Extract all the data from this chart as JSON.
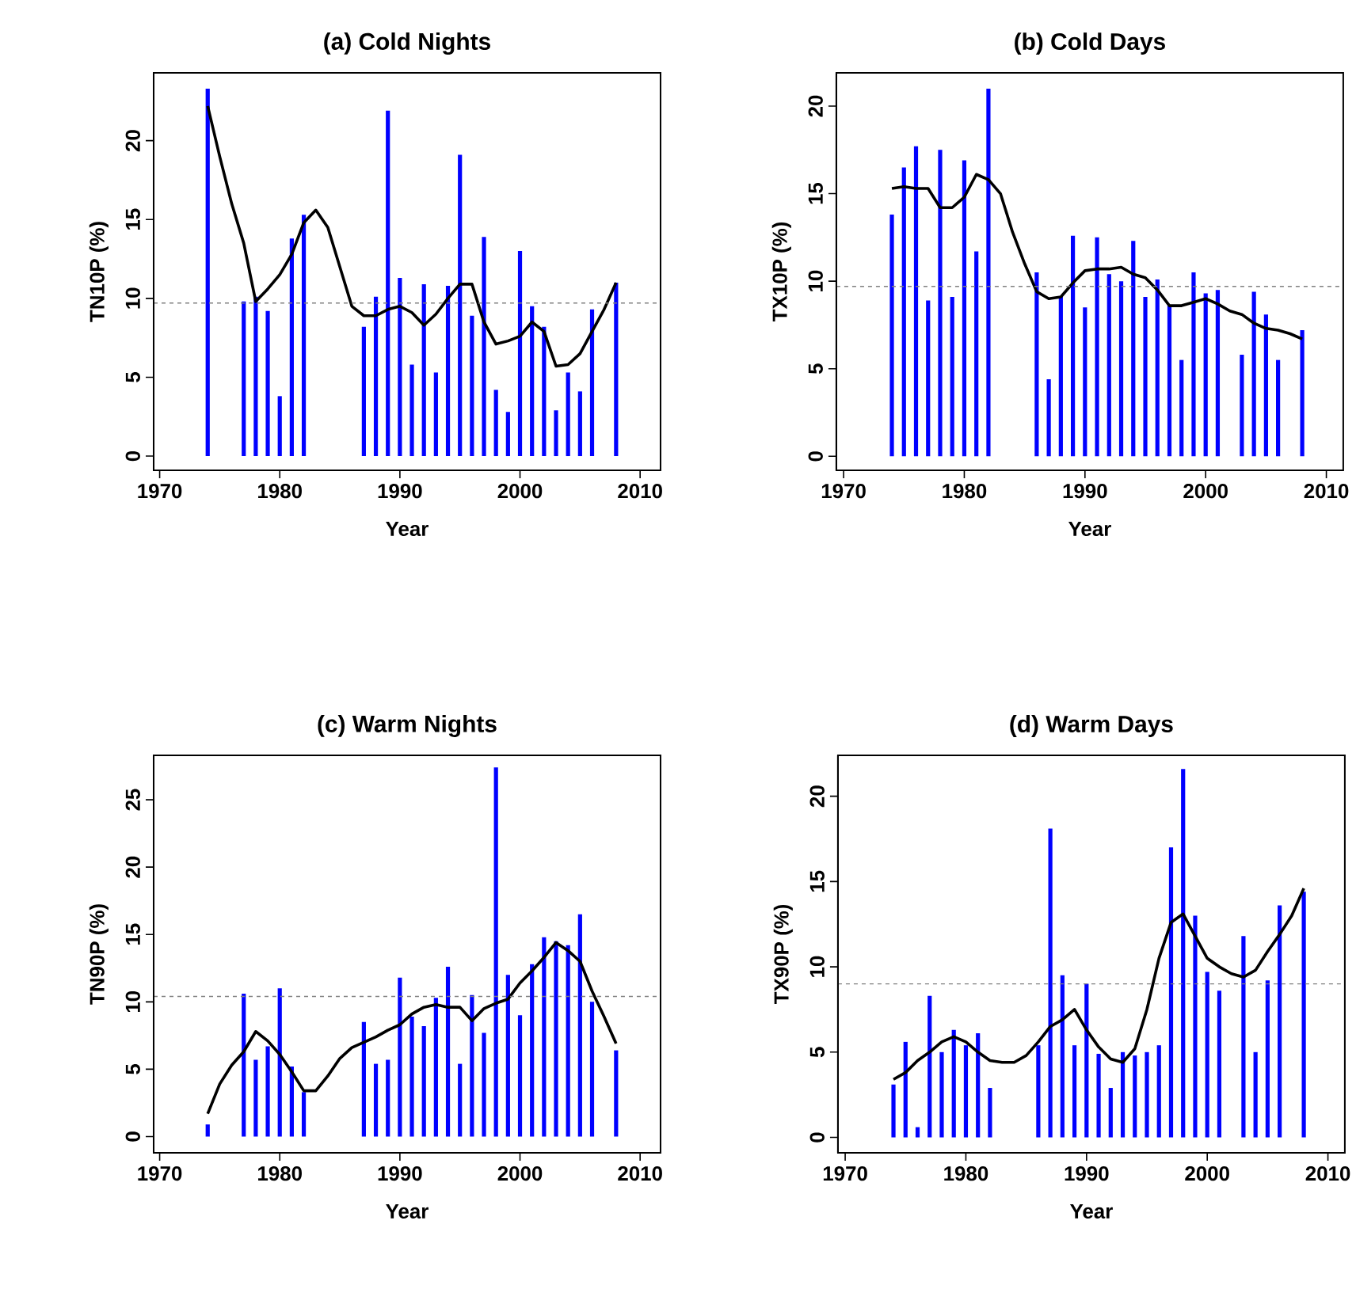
{
  "chart_data": [
    {
      "type": "bar",
      "title": "(a) Cold Nights",
      "xlabel": "Year",
      "ylabel": "TN10P (%)",
      "xlim": [
        1969.5,
        2011.7
      ],
      "ylim": [
        -0.9,
        24.3
      ],
      "xticks": [
        1970,
        1980,
        1990,
        2000,
        2010
      ],
      "yticks": [
        0,
        5,
        10,
        15,
        20
      ],
      "series": [
        {
          "color": "#0000ff",
          "x": [
            1974,
            1977,
            1978,
            1979,
            1980,
            1981,
            1982,
            1987,
            1988,
            1989,
            1990,
            1991,
            1992,
            1993,
            1994,
            1995,
            1996,
            1997,
            1998,
            1999,
            2000,
            2001,
            2002,
            2003,
            2004,
            2005,
            2006,
            2008
          ],
          "values": [
            23.3,
            9.8,
            10.1,
            9.2,
            3.8,
            13.8,
            15.3,
            8.2,
            10.1,
            21.9,
            11.3,
            5.8,
            10.9,
            5.3,
            10.8,
            19.1,
            8.9,
            13.9,
            4.2,
            2.8,
            13.0,
            9.5,
            8.2,
            2.9,
            5.3,
            4.1,
            9.3,
            11.0
          ]
        },
        {
          "type": "line",
          "color": "#000000",
          "x": [
            1974,
            1975,
            1976,
            1977,
            1978,
            1979,
            1980,
            1981,
            1982,
            1983,
            1984,
            1985,
            1986,
            1987,
            1988,
            1989,
            1990,
            1991,
            1992,
            1993,
            1994,
            1995,
            1996,
            1997,
            1998,
            1999,
            2000,
            2001,
            2002,
            2003,
            2004,
            2005,
            2006,
            2007,
            2008
          ],
          "values": [
            22.2,
            19,
            16,
            13.5,
            9.8,
            10.6,
            11.5,
            12.8,
            14.8,
            15.6,
            14.5,
            12,
            9.5,
            8.9,
            8.9,
            9.3,
            9.5,
            9.1,
            8.3,
            9.0,
            10.0,
            10.9,
            10.9,
            8.5,
            7.1,
            7.3,
            7.6,
            8.5,
            7.9,
            5.7,
            5.8,
            6.5,
            7.9,
            9.3,
            11.0
          ]
        }
      ],
      "ref_lines": [
        {
          "axis": "y",
          "value": 9.7,
          "color": "#808080",
          "line_style": "dashed"
        }
      ]
    },
    {
      "type": "bar",
      "title": "(b) Cold Days",
      "xlabel": "Year",
      "ylabel": "TX10P (%)",
      "xlim": [
        1969.4,
        2011.4
      ],
      "ylim": [
        -0.8,
        21.9
      ],
      "xticks": [
        1970,
        1980,
        1990,
        2000,
        2010
      ],
      "yticks": [
        0,
        5,
        10,
        15,
        20
      ],
      "series": [
        {
          "color": "#0000ff",
          "x": [
            1974,
            1975,
            1976,
            1977,
            1978,
            1979,
            1980,
            1981,
            1982,
            1986,
            1987,
            1988,
            1989,
            1990,
            1991,
            1992,
            1993,
            1994,
            1995,
            1996,
            1997,
            1998,
            1999,
            2000,
            2001,
            2003,
            2004,
            2005,
            2006,
            2008
          ],
          "values": [
            13.8,
            16.5,
            17.7,
            8.9,
            17.5,
            9.1,
            16.9,
            11.7,
            21.0,
            10.5,
            4.4,
            9.1,
            12.6,
            8.5,
            12.5,
            10.4,
            10.0,
            12.3,
            9.1,
            10.1,
            8.6,
            5.5,
            10.5,
            9.3,
            9.5,
            5.8,
            9.4,
            8.1,
            5.5,
            7.2
          ]
        },
        {
          "type": "line",
          "color": "#000000",
          "x": [
            1974,
            1975,
            1976,
            1977,
            1978,
            1979,
            1980,
            1981,
            1982,
            1983,
            1984,
            1985,
            1986,
            1987,
            1988,
            1989,
            1990,
            1991,
            1992,
            1993,
            1994,
            1995,
            1996,
            1997,
            1998,
            1999,
            2000,
            2001,
            2002,
            2003,
            2004,
            2005,
            2006,
            2007,
            2008
          ],
          "values": [
            15.3,
            15.4,
            15.3,
            15.3,
            14.2,
            14.2,
            14.8,
            16.1,
            15.8,
            15.0,
            12.8,
            11.0,
            9.4,
            9.0,
            9.1,
            9.9,
            10.6,
            10.7,
            10.7,
            10.8,
            10.4,
            10.2,
            9.5,
            8.6,
            8.6,
            8.8,
            9.0,
            8.7,
            8.3,
            8.1,
            7.6,
            7.3,
            7.2,
            7.0,
            6.7
          ]
        }
      ],
      "ref_lines": [
        {
          "axis": "y",
          "value": 9.7,
          "color": "#808080",
          "line_style": "dashed"
        }
      ]
    },
    {
      "type": "bar",
      "title": "(c) Warm Nights",
      "xlabel": "Year",
      "ylabel": "TN90P (%)",
      "xlim": [
        1969.5,
        2011.7
      ],
      "ylim": [
        -1.2,
        28.3
      ],
      "xticks": [
        1970,
        1980,
        1990,
        2000,
        2010
      ],
      "yticks": [
        0,
        5,
        10,
        15,
        20,
        25
      ],
      "series": [
        {
          "color": "#0000ff",
          "x": [
            1974,
            1977,
            1978,
            1979,
            1980,
            1981,
            1982,
            1987,
            1988,
            1989,
            1990,
            1991,
            1992,
            1993,
            1994,
            1995,
            1996,
            1997,
            1998,
            1999,
            2000,
            2001,
            2002,
            2003,
            2004,
            2005,
            2006,
            2008
          ],
          "values": [
            0.9,
            10.6,
            5.7,
            6.7,
            11.0,
            5.2,
            3.3,
            8.5,
            5.4,
            5.7,
            11.8,
            8.9,
            8.2,
            10.3,
            12.6,
            5.4,
            10.5,
            7.7,
            27.4,
            12.0,
            9.0,
            12.8,
            14.8,
            14.5,
            14.2,
            16.5,
            10.0,
            6.4
          ]
        },
        {
          "type": "line",
          "color": "#000000",
          "x": [
            1974,
            1975,
            1976,
            1977,
            1978,
            1979,
            1980,
            1981,
            1982,
            1983,
            1984,
            1985,
            1986,
            1987,
            1988,
            1989,
            1990,
            1991,
            1992,
            1993,
            1994,
            1995,
            1996,
            1997,
            1998,
            1999,
            2000,
            2001,
            2002,
            2003,
            2004,
            2005,
            2006,
            2007,
            2008
          ],
          "values": [
            1.7,
            3.9,
            5.3,
            6.3,
            7.8,
            7.1,
            6.1,
            4.8,
            3.4,
            3.4,
            4.5,
            5.8,
            6.6,
            7.0,
            7.4,
            7.9,
            8.3,
            9.1,
            9.6,
            9.8,
            9.6,
            9.6,
            8.6,
            9.5,
            9.9,
            10.2,
            11.4,
            12.3,
            13.3,
            14.4,
            13.8,
            13.0,
            10.8,
            8.9,
            6.9
          ]
        }
      ],
      "ref_lines": [
        {
          "axis": "y",
          "value": 10.4,
          "color": "#808080",
          "line_style": "dashed"
        }
      ]
    },
    {
      "type": "bar",
      "title": "(d) Warm Days",
      "xlabel": "Year",
      "ylabel": "TX90P (%)",
      "xlim": [
        1969.4,
        2011.4
      ],
      "ylim": [
        -0.9,
        22.4
      ],
      "xticks": [
        1970,
        1980,
        1990,
        2000,
        2010
      ],
      "yticks": [
        0,
        5,
        10,
        15,
        20
      ],
      "series": [
        {
          "color": "#0000ff",
          "x": [
            1974,
            1975,
            1976,
            1977,
            1978,
            1979,
            1980,
            1981,
            1982,
            1986,
            1987,
            1988,
            1989,
            1990,
            1991,
            1992,
            1993,
            1994,
            1995,
            1996,
            1997,
            1998,
            1999,
            2000,
            2001,
            2003,
            2004,
            2005,
            2006,
            2008
          ],
          "values": [
            3.1,
            5.6,
            0.6,
            8.3,
            5.0,
            6.3,
            5.4,
            6.1,
            2.9,
            5.4,
            18.1,
            9.5,
            5.4,
            9.0,
            4.9,
            2.9,
            5.0,
            4.8,
            5.0,
            5.4,
            17.0,
            21.6,
            13.0,
            9.7,
            8.6,
            11.8,
            5.0,
            9.2,
            13.6,
            14.4
          ]
        },
        {
          "type": "line",
          "color": "#000000",
          "x": [
            1974,
            1975,
            1976,
            1977,
            1978,
            1979,
            1980,
            1981,
            1982,
            1983,
            1984,
            1985,
            1986,
            1987,
            1988,
            1989,
            1990,
            1991,
            1992,
            1993,
            1994,
            1995,
            1996,
            1997,
            1998,
            1999,
            2000,
            2001,
            2002,
            2003,
            2004,
            2005,
            2006,
            2007,
            2008
          ],
          "values": [
            3.4,
            3.8,
            4.5,
            5.0,
            5.6,
            5.9,
            5.6,
            5.0,
            4.5,
            4.4,
            4.4,
            4.8,
            5.6,
            6.5,
            6.9,
            7.5,
            6.3,
            5.3,
            4.6,
            4.4,
            5.2,
            7.5,
            10.5,
            12.6,
            13.1,
            11.8,
            10.5,
            10.0,
            9.6,
            9.4,
            9.8,
            10.9,
            11.9,
            13.0,
            14.6
          ]
        }
      ],
      "ref_lines": [
        {
          "axis": "y",
          "value": 9.0,
          "color": "#808080",
          "line_style": "dashed"
        }
      ]
    }
  ]
}
